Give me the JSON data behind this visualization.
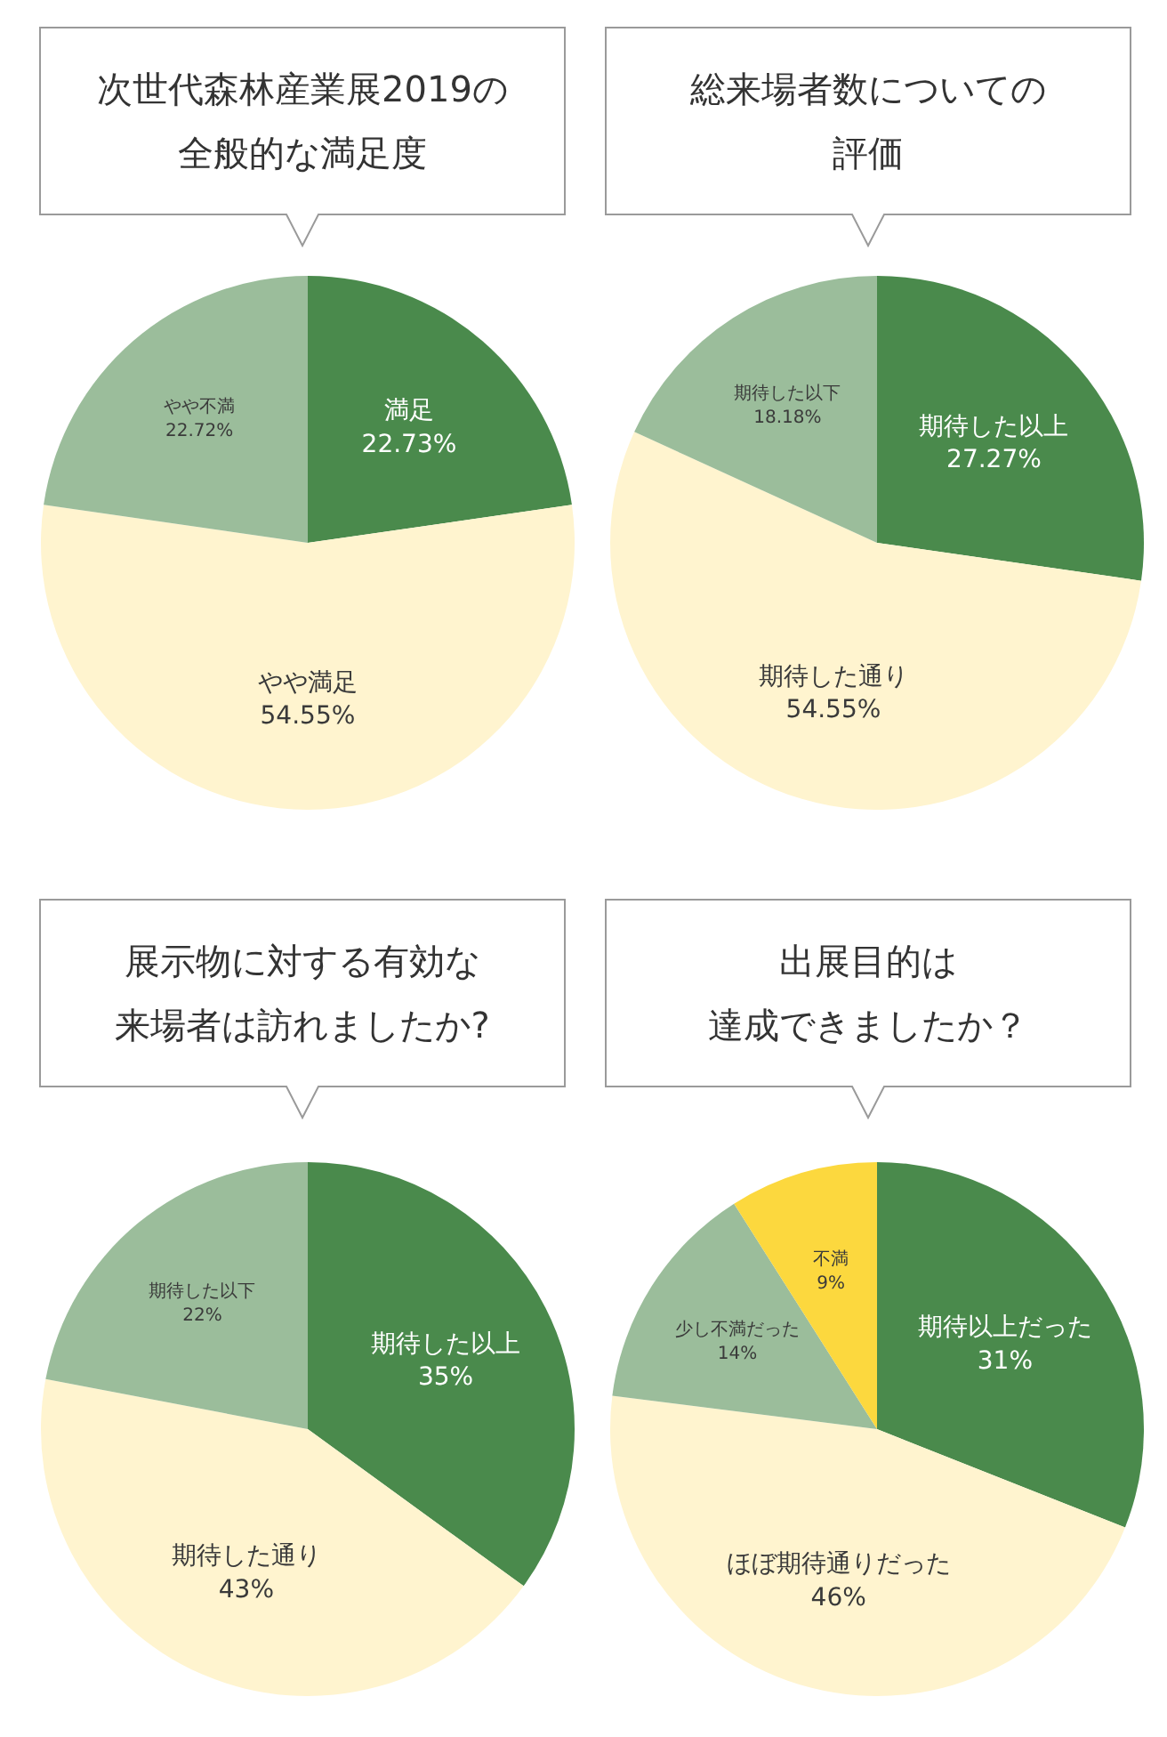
{
  "chart_data": [
    {
      "type": "pie",
      "title": "次世代森林産業展2019の全般的な満足度",
      "categories": [
        "満足",
        "やや満足",
        "やや不満"
      ],
      "values": [
        22.73,
        54.55,
        22.72
      ],
      "colors": [
        "#4a8a4c",
        "#fff4cf",
        "#9bbd9b"
      ],
      "value_labels": [
        "22.73%",
        "54.55%",
        "22.72%"
      ],
      "legend": false
    },
    {
      "type": "pie",
      "title": "総来場者数についての評価",
      "categories": [
        "期待した以上",
        "期待した通り",
        "期待した以下"
      ],
      "values": [
        27.27,
        54.55,
        18.18
      ],
      "colors": [
        "#4a8a4c",
        "#fff4cf",
        "#9bbd9b"
      ],
      "value_labels": [
        "27.27%",
        "54.55%",
        "18.18%"
      ],
      "legend": false
    },
    {
      "type": "pie",
      "title": "展示物に対する有効な来場者は訪れましたか?",
      "categories": [
        "期待した以上",
        "期待した通り",
        "期待した以下"
      ],
      "values": [
        35,
        43,
        22
      ],
      "colors": [
        "#4a8a4c",
        "#fff4cf",
        "#9bbd9b"
      ],
      "value_labels": [
        "35%",
        "43%",
        "22%"
      ],
      "legend": false
    },
    {
      "type": "pie",
      "title": "出展目的は達成できましたか？",
      "categories": [
        "期待以上だった",
        "ほぼ期待通りだった",
        "少し不満だった",
        "不満"
      ],
      "values": [
        31,
        46,
        14,
        9
      ],
      "colors": [
        "#4a8a4c",
        "#fff4cf",
        "#9bbd9b",
        "#fcd83e"
      ],
      "value_labels": [
        "31%",
        "46%",
        "14%",
        "9%"
      ],
      "legend": false
    }
  ]
}
